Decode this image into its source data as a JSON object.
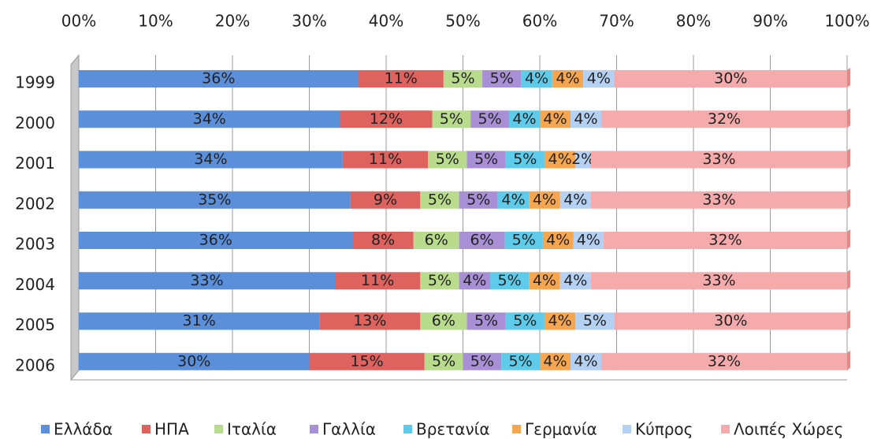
{
  "chart_data": {
    "type": "stacked100_barh",
    "categories": [
      "1999",
      "2000",
      "2001",
      "2002",
      "2003",
      "2004",
      "2005",
      "2006"
    ],
    "series": [
      {
        "name": "Ελλάδα",
        "color": "#5b8fd9",
        "values": [
          36,
          34,
          34,
          35,
          36,
          33,
          31,
          30
        ],
        "value_labels": [
          "36%",
          "34%",
          "34%",
          "35%",
          "36%",
          "33%",
          "31%",
          "30%"
        ]
      },
      {
        "name": "ΗΠΑ",
        "color": "#de625e",
        "values": [
          11,
          12,
          11,
          9,
          8,
          11,
          13,
          15
        ],
        "value_labels": [
          "11%",
          "12%",
          "11%",
          "9%",
          "8%",
          "11%",
          "13%",
          "15%"
        ]
      },
      {
        "name": "Ιταλία",
        "color": "#b8db8c",
        "values": [
          5,
          5,
          5,
          5,
          6,
          5,
          6,
          5
        ],
        "value_labels": [
          "5%",
          "5%",
          "5%",
          "5%",
          "6%",
          "5%",
          "6%",
          "5%"
        ]
      },
      {
        "name": "Γαλλία",
        "color": "#a88fd6",
        "values": [
          5,
          5,
          5,
          5,
          6,
          4,
          5,
          5
        ],
        "value_labels": [
          "5%",
          "5%",
          "5%",
          "5%",
          "6%",
          "4%",
          "5%",
          "5%"
        ]
      },
      {
        "name": "Βρετανία",
        "color": "#5fcbea",
        "values": [
          4,
          4,
          5,
          4,
          5,
          5,
          5,
          5
        ],
        "value_labels": [
          "4%",
          "4%",
          "5%",
          "4%",
          "5%",
          "5%",
          "5%",
          "5%"
        ]
      },
      {
        "name": "Γερμανία",
        "color": "#f6a64e",
        "values": [
          4,
          4,
          4,
          4,
          4,
          4,
          4,
          4
        ],
        "value_labels": [
          "4%",
          "4%",
          "4%",
          "4%",
          "4%",
          "4%",
          "4%",
          "4%"
        ]
      },
      {
        "name": "Κύπρος",
        "color": "#b4d0f2",
        "values": [
          4,
          4,
          2,
          4,
          4,
          4,
          5,
          4
        ],
        "value_labels": [
          "4%",
          "4%",
          "2%",
          "4%",
          "4%",
          "4%",
          "5%",
          "4%"
        ]
      },
      {
        "name": "Λοιπές Χώρες",
        "color": "#f5abab",
        "values": [
          30,
          32,
          33,
          33,
          32,
          33,
          30,
          32
        ],
        "value_labels": [
          "30%",
          "32%",
          "33%",
          "33%",
          "32%",
          "33%",
          "30%",
          "32%"
        ]
      }
    ],
    "xlim": [
      0,
      100
    ],
    "xticks": [
      {
        "value": 0,
        "label": "00%"
      },
      {
        "value": 10,
        "label": "10%"
      },
      {
        "value": 20,
        "label": "20%"
      },
      {
        "value": 30,
        "label": "30%"
      },
      {
        "value": 40,
        "label": "40%"
      },
      {
        "value": 50,
        "label": "50%"
      },
      {
        "value": 60,
        "label": "60%"
      },
      {
        "value": 70,
        "label": "70%"
      },
      {
        "value": 80,
        "label": "80%"
      },
      {
        "value": 90,
        "label": "90%"
      },
      {
        "value": 100,
        "label": "100%"
      }
    ],
    "grid": true,
    "legend": "bottom"
  }
}
